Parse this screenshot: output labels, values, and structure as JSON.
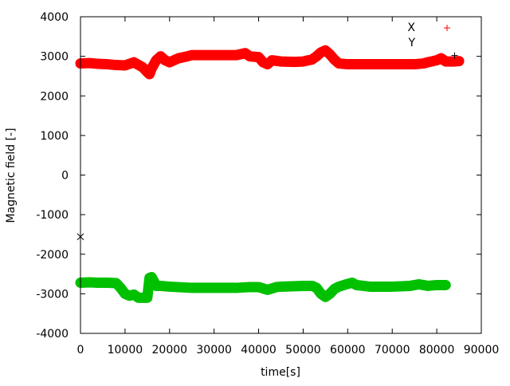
{
  "chart_data": {
    "type": "scatter",
    "title": "",
    "xlabel": "time[s]",
    "ylabel": "Magnetic field [-]",
    "xlim": [
      0,
      90000
    ],
    "ylim": [
      -4000,
      4000
    ],
    "xticks": [
      "0",
      "10000",
      "20000",
      "30000",
      "40000",
      "50000",
      "60000",
      "70000",
      "80000",
      "90000"
    ],
    "yticks": [
      "-4000",
      "-3000",
      "-2000",
      "-1000",
      "0",
      "1000",
      "2000",
      "3000",
      "4000"
    ],
    "grid": false,
    "legend_position": "top-right",
    "series": [
      {
        "name": "X",
        "color": "#ff0000",
        "marker": "plus",
        "x": [
          0,
          2000,
          4000,
          6000,
          8000,
          10000,
          12000,
          14000,
          15000,
          15500,
          16000,
          17000,
          18000,
          19000,
          20000,
          22000,
          24000,
          25000,
          27000,
          30000,
          33000,
          35000,
          37000,
          38000,
          40000,
          41000,
          42000,
          43000,
          45000,
          48000,
          50000,
          52000,
          53000,
          54000,
          55000,
          56000,
          57000,
          58000,
          60000,
          65000,
          70000,
          75000,
          77000,
          78000,
          80000,
          81000,
          82000,
          84000,
          85000
        ],
        "y": [
          2820,
          2830,
          2810,
          2800,
          2780,
          2770,
          2850,
          2720,
          2600,
          2550,
          2700,
          2900,
          3000,
          2900,
          2850,
          2950,
          3000,
          3030,
          3030,
          3030,
          3030,
          3030,
          3080,
          3000,
          2980,
          2850,
          2800,
          2900,
          2870,
          2860,
          2870,
          2920,
          3000,
          3100,
          3150,
          3050,
          2920,
          2820,
          2800,
          2800,
          2800,
          2800,
          2820,
          2850,
          2900,
          2950,
          2870,
          2870,
          2880
        ]
      },
      {
        "name": "Y",
        "color": "#00c000",
        "marker": "cross",
        "x": [
          0,
          2000,
          4000,
          6000,
          8000,
          9000,
          10000,
          11000,
          12000,
          13000,
          14000,
          15000,
          15500,
          16000,
          17000,
          18000,
          20000,
          25000,
          30000,
          35000,
          38000,
          40000,
          42000,
          44000,
          45000,
          50000,
          52000,
          53000,
          54000,
          55000,
          56000,
          57000,
          58000,
          60000,
          61000,
          62000,
          65000,
          70000,
          74000,
          76000,
          78000,
          80000,
          82000
        ],
        "y": [
          -2720,
          -2710,
          -2720,
          -2720,
          -2730,
          -2850,
          -3000,
          -3050,
          -3020,
          -3100,
          -3100,
          -3100,
          -2600,
          -2580,
          -2800,
          -2800,
          -2820,
          -2850,
          -2850,
          -2850,
          -2830,
          -2830,
          -2900,
          -2830,
          -2820,
          -2800,
          -2800,
          -2850,
          -3000,
          -3080,
          -3000,
          -2880,
          -2820,
          -2750,
          -2720,
          -2780,
          -2820,
          -2820,
          -2800,
          -2760,
          -2800,
          -2780,
          -2780
        ]
      }
    ],
    "outliers": [
      {
        "x": 0,
        "y": -1560,
        "color": "#000000",
        "marker": "cross"
      },
      {
        "x": 84000,
        "y": 3020,
        "color": "#000000",
        "marker": "plus"
      }
    ]
  }
}
